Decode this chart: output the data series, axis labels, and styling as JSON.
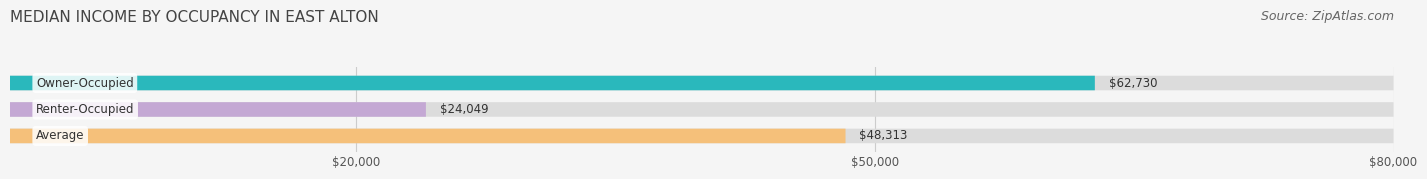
{
  "title": "MEDIAN INCOME BY OCCUPANCY IN EAST ALTON",
  "source": "Source: ZipAtlas.com",
  "categories": [
    "Owner-Occupied",
    "Renter-Occupied",
    "Average"
  ],
  "values": [
    62730,
    24049,
    48313
  ],
  "bar_colors": [
    "#2ab8bc",
    "#c4a8d4",
    "#f5c07a"
  ],
  "bar_bg_color": "#dcdcdc",
  "value_labels": [
    "$62,730",
    "$24,049",
    "$48,313"
  ],
  "xlim": [
    0,
    80000
  ],
  "xticks": [
    20000,
    50000,
    80000
  ],
  "xtick_labels": [
    "$20,000",
    "$50,000",
    "$80,000"
  ],
  "title_fontsize": 11,
  "source_fontsize": 9,
  "label_fontsize": 8.5,
  "bar_height": 0.55,
  "background_color": "#f5f5f5"
}
